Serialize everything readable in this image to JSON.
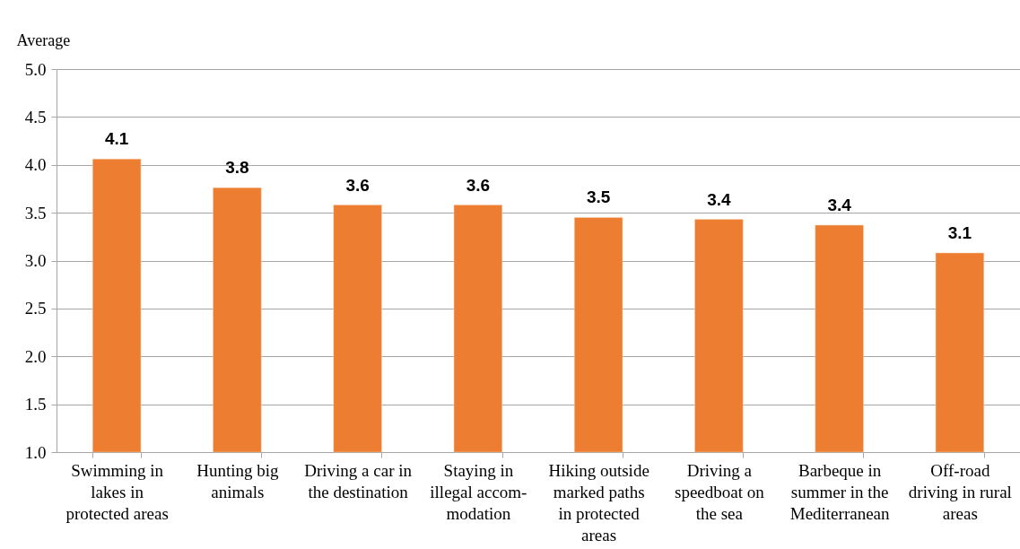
{
  "chart_data": {
    "type": "bar",
    "ylabel": "Average",
    "categories": [
      "Swimming in lakes in protected areas",
      "Hunting big animals",
      "Driving a car in the destination",
      "Staying in illegal accom-modation",
      "Hiking outside marked paths in protected areas",
      "Driving a speedboat on the sea",
      "Barbeque in summer in the Mediterranean",
      "Off-road driving in rural areas"
    ],
    "values": [
      4.06,
      3.76,
      3.58,
      3.58,
      3.45,
      3.43,
      3.37,
      3.08
    ],
    "value_labels": [
      "4.1",
      "3.8",
      "3.6",
      "3.6",
      "3.5",
      "3.4",
      "3.4",
      "3.1"
    ],
    "color": "#ed7d31",
    "ylim": [
      1,
      5
    ],
    "yticks": [
      {
        "value": 1,
        "label": "1.0"
      },
      {
        "value": 1.5,
        "label": "1.5"
      },
      {
        "value": 2,
        "label": "2.0"
      },
      {
        "value": 2.5,
        "label": "2.5"
      },
      {
        "value": 3,
        "label": "3.0"
      },
      {
        "value": 3.5,
        "label": "3.5"
      },
      {
        "value": 4,
        "label": "4.0"
      },
      {
        "value": 4.5,
        "label": "4.5"
      },
      {
        "value": 5,
        "label": "5.0"
      }
    ],
    "grid": "y"
  }
}
